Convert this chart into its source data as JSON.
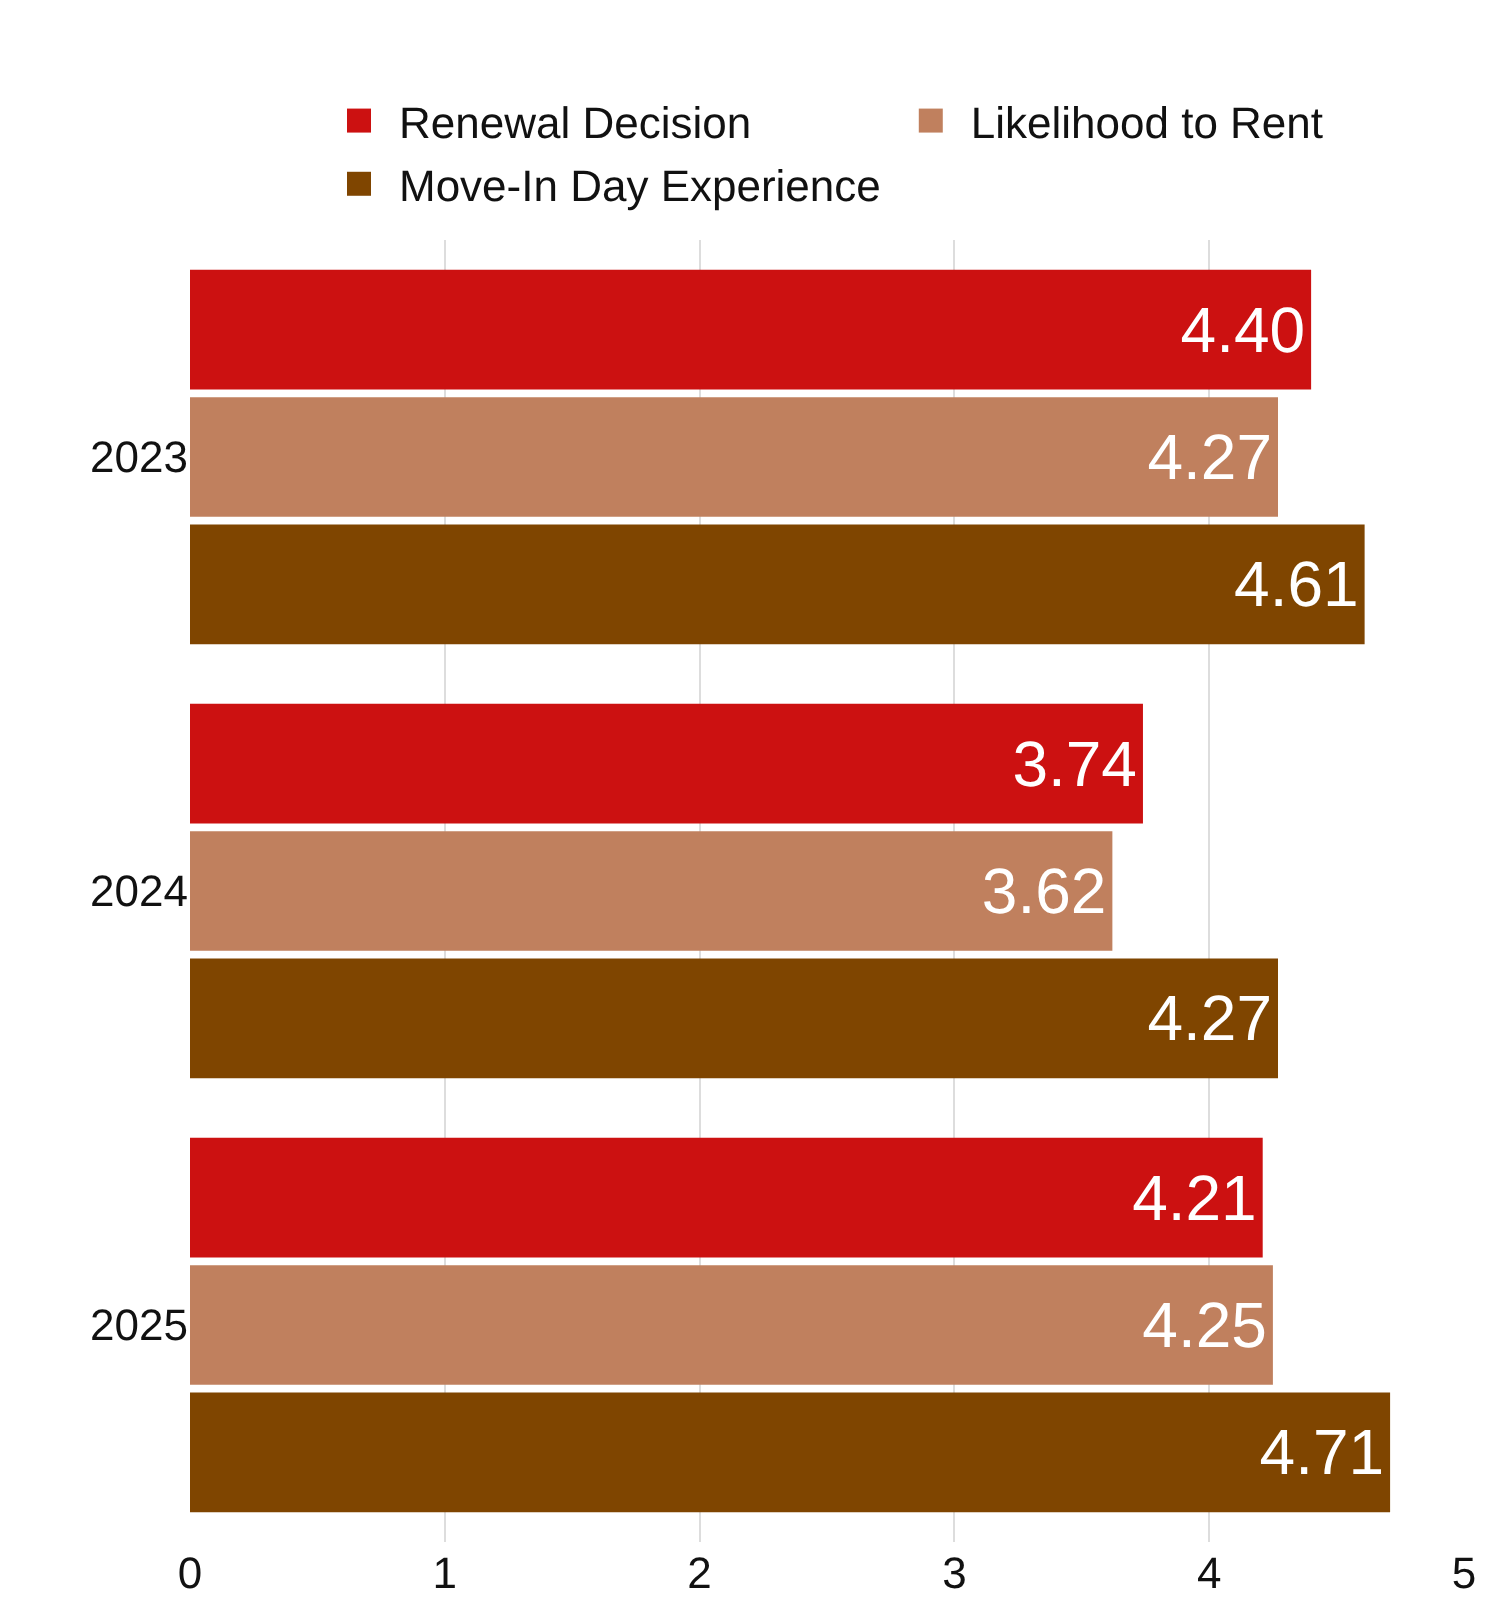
{
  "chart_data": {
    "type": "bar",
    "orientation": "horizontal",
    "categories": [
      "2023",
      "2024",
      "2025"
    ],
    "series": [
      {
        "name": "Renewal Decision",
        "color": "#cc1111",
        "values": [
          4.4,
          3.74,
          4.21
        ],
        "value_labels": [
          "4.40",
          "3.74",
          "4.21"
        ]
      },
      {
        "name": "Likelihood to Rent",
        "color": "#c0805e",
        "values": [
          4.27,
          3.62,
          4.25
        ],
        "value_labels": [
          "4.27",
          "3.62",
          "4.25"
        ]
      },
      {
        "name": "Move-In Day Experience",
        "color": "#7f4500",
        "values": [
          4.61,
          4.27,
          4.71
        ],
        "value_labels": [
          "4.61",
          "4.27",
          "4.71"
        ]
      }
    ],
    "xlim": [
      0,
      5
    ],
    "xticks": [
      0,
      1,
      2,
      3,
      4,
      5
    ],
    "grid": "x",
    "legend": "top"
  }
}
